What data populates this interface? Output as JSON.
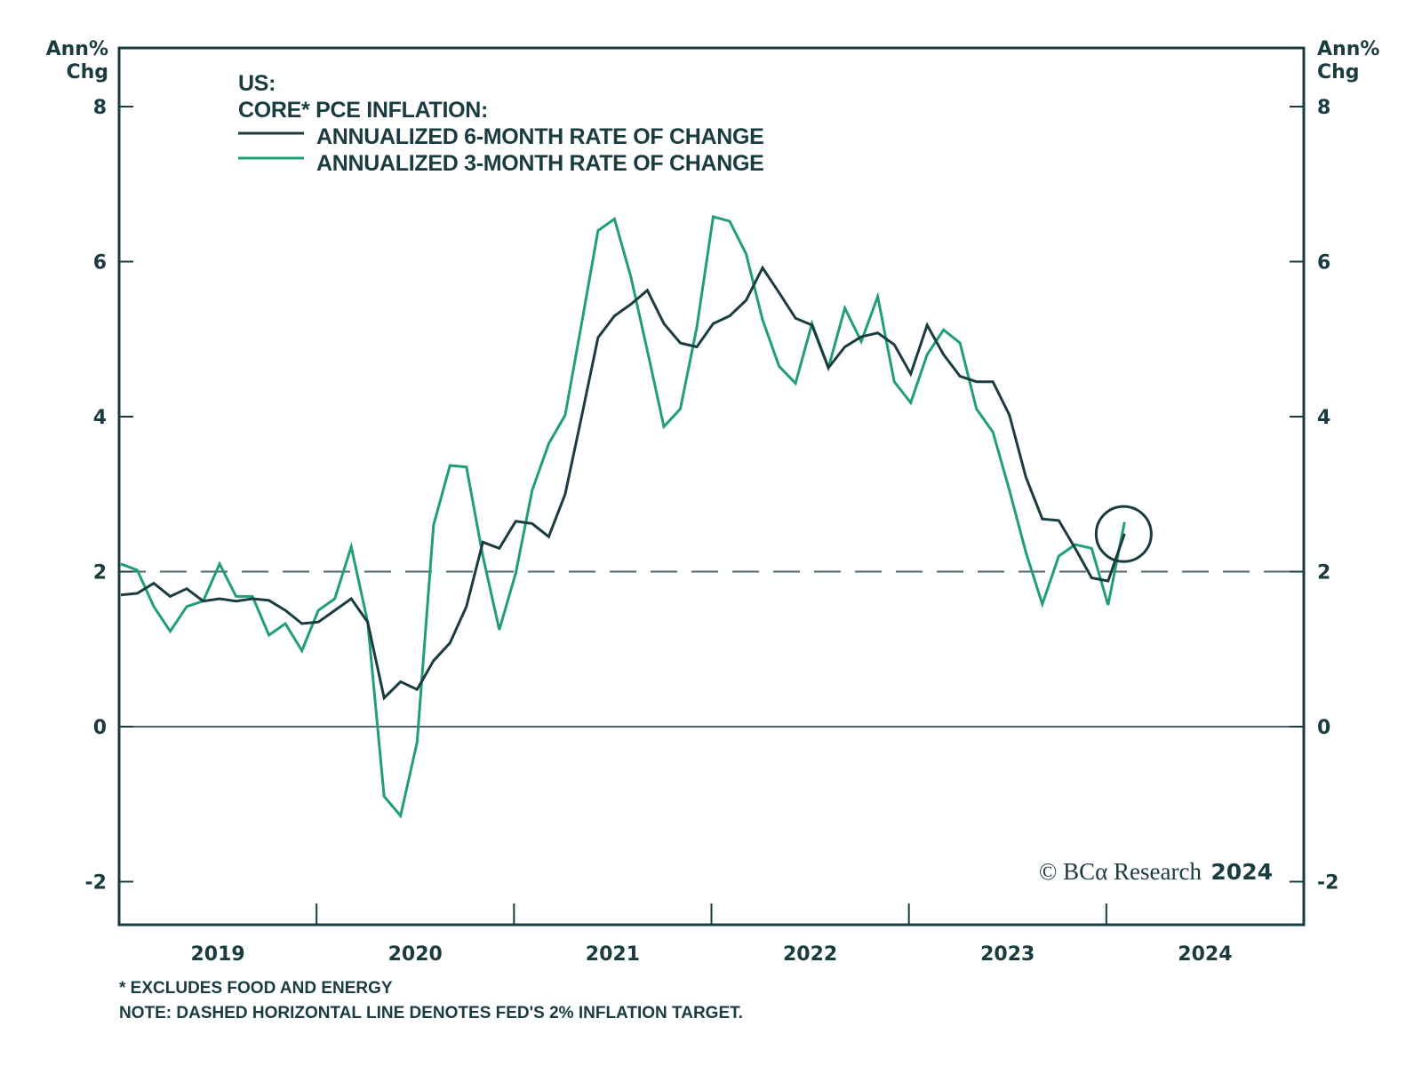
{
  "chart_data": {
    "type": "line",
    "title": "US:",
    "subtitle": "CORE* PCE INFLATION:",
    "ylabel_left": [
      "Ann%",
      "Chg"
    ],
    "ylabel_right": [
      "Ann%",
      "Chg"
    ],
    "ylim": [
      -2.5,
      8.75
    ],
    "yticks": [
      -2,
      0,
      2,
      4,
      6,
      8
    ],
    "ytick_labels": [
      "-2",
      "0",
      "2",
      "4",
      "6",
      "8"
    ],
    "xlim_years": [
      2019,
      2025
    ],
    "xtick_labels": [
      "2019",
      "2020",
      "2021",
      "2022",
      "2023",
      "2024"
    ],
    "x_start": "2019-01",
    "frequency": "monthly",
    "reference_line": {
      "value": 2,
      "style": "dashed",
      "meaning": "Fed's 2% inflation target"
    },
    "zero_line": 0,
    "series": [
      {
        "name": "ANNUALIZED 6-MONTH RATE OF CHANGE",
        "color": "#1a3c40",
        "values": [
          1.7,
          1.72,
          1.85,
          1.68,
          1.78,
          1.62,
          1.65,
          1.62,
          1.65,
          1.63,
          1.5,
          1.33,
          1.35,
          1.5,
          1.65,
          1.35,
          0.37,
          0.58,
          0.48,
          0.85,
          1.08,
          1.55,
          2.38,
          2.3,
          2.65,
          2.62,
          2.45,
          3.0,
          4.0,
          5.02,
          5.3,
          5.45,
          5.63,
          5.2,
          4.95,
          4.9,
          5.2,
          5.3,
          5.5,
          5.92,
          5.6,
          5.27,
          5.18,
          4.63,
          4.9,
          5.03,
          5.08,
          4.93,
          4.55,
          5.18,
          4.8,
          4.52,
          4.45,
          4.45,
          4.02,
          3.22,
          2.68,
          2.66,
          2.3,
          1.92,
          1.88,
          2.49
        ]
      },
      {
        "name": "ANNUALIZED 3-MONTH RATE OF CHANGE",
        "color": "#1f9e78",
        "values": [
          2.1,
          2.02,
          1.55,
          1.23,
          1.55,
          1.62,
          2.1,
          1.68,
          1.68,
          1.18,
          1.33,
          0.98,
          1.5,
          1.65,
          2.32,
          1.35,
          -0.9,
          -1.15,
          -0.2,
          2.6,
          3.37,
          3.35,
          2.2,
          1.25,
          1.98,
          3.05,
          3.65,
          4.02,
          5.2,
          6.4,
          6.55,
          5.8,
          4.85,
          3.87,
          4.1,
          5.15,
          6.58,
          6.52,
          6.1,
          5.25,
          4.65,
          4.43,
          5.2,
          4.63,
          5.4,
          4.97,
          5.55,
          4.45,
          4.18,
          4.8,
          5.12,
          4.95,
          4.1,
          3.8,
          3.05,
          2.25,
          1.58,
          2.2,
          2.35,
          2.3,
          1.57,
          2.64
        ]
      }
    ],
    "annotations": [
      {
        "type": "circle",
        "target": "latest data point (early 2024)",
        "value_approx": 2.6
      }
    ],
    "legend": {
      "placement": "top-left"
    },
    "grid": false,
    "watermark": {
      "prefix": "© BCα Research",
      "year": "2024"
    },
    "footnotes": [
      "* EXCLUDES FOOD AND ENERGY",
      "NOTE: DASHED HORIZONTAL LINE DENOTES FED'S 2% INFLATION TARGET."
    ]
  }
}
